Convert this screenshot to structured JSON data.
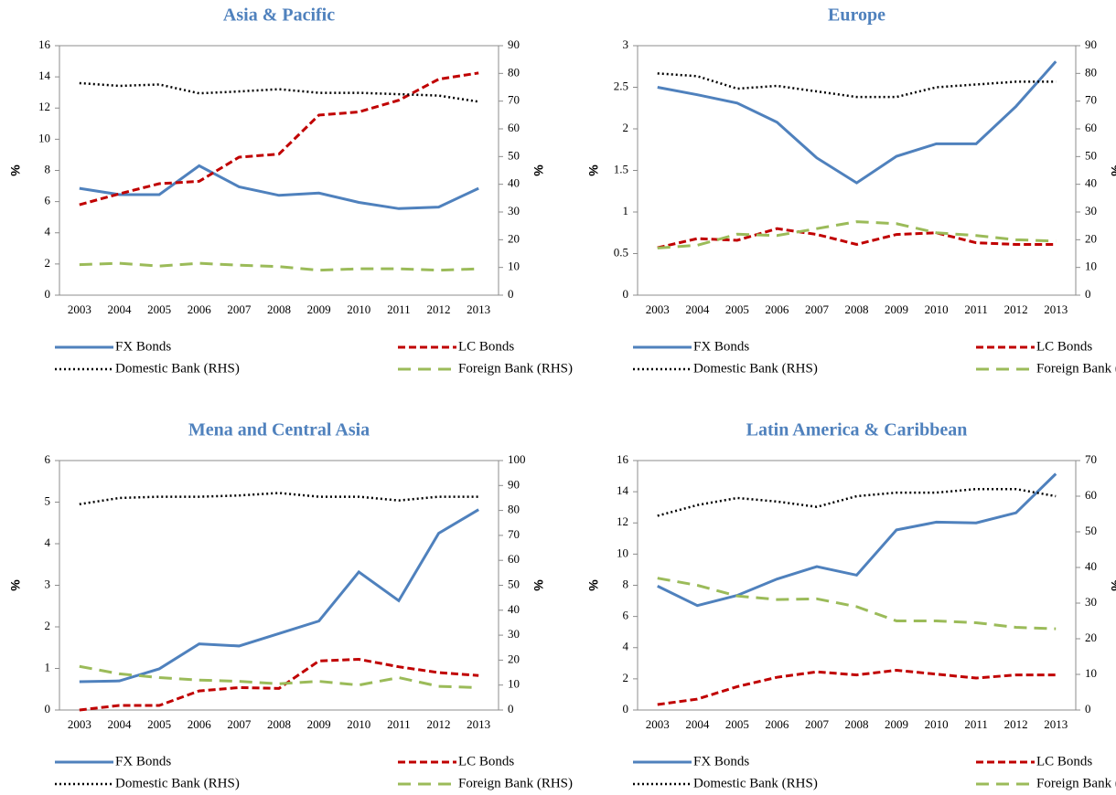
{
  "chart_data": [
    {
      "type": "line",
      "title": "Asia & Pacific",
      "ylabel": "%",
      "y2label": "%",
      "categories": [
        "2003",
        "2004",
        "2005",
        "2006",
        "2007",
        "2008",
        "2009",
        "2010",
        "2011",
        "2012",
        "2013"
      ],
      "ylim": [
        0,
        16
      ],
      "yticks": [
        0,
        2,
        4,
        6,
        8,
        10,
        12,
        14,
        16
      ],
      "y2lim": [
        0,
        90
      ],
      "y2ticks": [
        0,
        10,
        20,
        30,
        40,
        50,
        60,
        70,
        80,
        90
      ],
      "legend": "bottom",
      "series": [
        {
          "name": "FX Bonds",
          "color": "#4f81bd",
          "style": "solid",
          "values": [
            6.85,
            6.45,
            6.45,
            8.3,
            6.95,
            6.4,
            6.55,
            5.95,
            5.55,
            5.65,
            6.85
          ]
        },
        {
          "name": "LC Bonds",
          "color": "#c00000",
          "style": "dashed",
          "values": [
            5.8,
            6.5,
            7.15,
            7.3,
            8.85,
            9.05,
            11.55,
            11.75,
            12.5,
            13.85,
            14.25
          ]
        },
        {
          "name": "Domestic Bank (RHS)",
          "color": "#000000",
          "style": "dotted",
          "axis": "y2",
          "values": [
            76.5,
            75.5,
            76,
            72.8,
            73.5,
            74.3,
            73,
            73,
            72.5,
            72,
            69.8
          ]
        },
        {
          "name": "Foreign Bank (RHS)",
          "color": "#9bbb59",
          "style": "longdash",
          "axis": "y2",
          "values": [
            11,
            11.5,
            10.5,
            11.5,
            10.8,
            10.3,
            9,
            9.5,
            9.5,
            9,
            9.5
          ]
        }
      ]
    },
    {
      "type": "line",
      "title": "Europe",
      "ylabel": "%",
      "y2label": "%",
      "categories": [
        "2003",
        "2004",
        "2005",
        "2006",
        "2007",
        "2008",
        "2009",
        "2010",
        "2011",
        "2012",
        "2013"
      ],
      "ylim": [
        0,
        3
      ],
      "yticks": [
        0,
        0.5,
        1,
        1.5,
        2,
        2.5,
        3
      ],
      "y2lim": [
        0,
        90
      ],
      "y2ticks": [
        0,
        10,
        20,
        30,
        40,
        50,
        60,
        70,
        80,
        90
      ],
      "legend": "bottom",
      "series": [
        {
          "name": "FX Bonds",
          "color": "#4f81bd",
          "style": "solid",
          "values": [
            2.5,
            2.41,
            2.31,
            2.08,
            1.65,
            1.35,
            1.67,
            1.82,
            1.82,
            2.27,
            2.81
          ]
        },
        {
          "name": "LC Bonds",
          "color": "#c00000",
          "style": "dashed",
          "values": [
            0.57,
            0.68,
            0.66,
            0.8,
            0.73,
            0.61,
            0.73,
            0.75,
            0.63,
            0.61,
            0.61
          ]
        },
        {
          "name": "Domestic Bank (RHS)",
          "color": "#000000",
          "style": "dotted",
          "axis": "y2",
          "values": [
            80,
            79,
            74.5,
            75.5,
            73.5,
            71.5,
            71.5,
            75,
            76,
            77,
            77
          ]
        },
        {
          "name": "Foreign Bank (RHS)",
          "color": "#9bbb59",
          "style": "longdash",
          "axis": "y2",
          "values": [
            17,
            18,
            22,
            21.5,
            24,
            26.5,
            25.8,
            22.5,
            21.5,
            20,
            19.5
          ]
        }
      ]
    },
    {
      "type": "line",
      "title": "Mena and Central Asia",
      "ylabel": "%",
      "y2label": "%",
      "categories": [
        "2003",
        "2004",
        "2005",
        "2006",
        "2007",
        "2008",
        "2009",
        "2010",
        "2011",
        "2012",
        "2013"
      ],
      "ylim": [
        0,
        6
      ],
      "yticks": [
        0,
        1,
        2,
        3,
        4,
        5,
        6
      ],
      "y2lim": [
        0,
        100
      ],
      "y2ticks": [
        0,
        10,
        20,
        30,
        40,
        50,
        60,
        70,
        80,
        90,
        100
      ],
      "legend": "bottom",
      "series": [
        {
          "name": "FX Bonds",
          "color": "#4f81bd",
          "style": "solid",
          "values": [
            0.68,
            0.7,
            0.99,
            1.59,
            1.54,
            1.84,
            2.14,
            3.32,
            2.63,
            4.25,
            4.82
          ]
        },
        {
          "name": "LC Bonds",
          "color": "#c00000",
          "style": "dashed",
          "values": [
            0,
            0.11,
            0.11,
            0.46,
            0.54,
            0.52,
            1.18,
            1.22,
            1.04,
            0.9,
            0.83
          ]
        },
        {
          "name": "Domestic Bank (RHS)",
          "color": "#000000",
          "style": "dotted",
          "axis": "y2",
          "values": [
            82.5,
            85,
            85.5,
            85.5,
            86,
            87,
            85.5,
            85.5,
            84,
            85.5,
            85.5
          ]
        },
        {
          "name": "Foreign Bank (RHS)",
          "color": "#9bbb59",
          "style": "longdash",
          "axis": "y2",
          "values": [
            17.5,
            14.5,
            13,
            12,
            11.5,
            10.5,
            11.5,
            10,
            13,
            9.5,
            9
          ]
        }
      ]
    },
    {
      "type": "line",
      "title": "Latin America & Caribbean",
      "ylabel": "%",
      "y2label": "%",
      "categories": [
        "2003",
        "2004",
        "2005",
        "2006",
        "2007",
        "2008",
        "2009",
        "2010",
        "2011",
        "2012",
        "2013"
      ],
      "ylim": [
        0,
        16
      ],
      "yticks": [
        0,
        2,
        4,
        6,
        8,
        10,
        12,
        14,
        16
      ],
      "y2lim": [
        0,
        70
      ],
      "y2ticks": [
        0,
        10,
        20,
        30,
        40,
        50,
        60,
        70
      ],
      "legend": "bottom",
      "series": [
        {
          "name": "FX Bonds",
          "color": "#4f81bd",
          "style": "solid",
          "values": [
            7.95,
            6.7,
            7.35,
            8.4,
            9.2,
            8.65,
            11.55,
            12.05,
            12,
            12.65,
            15.15
          ]
        },
        {
          "name": "LC Bonds",
          "color": "#c00000",
          "style": "dashed",
          "values": [
            0.35,
            0.7,
            1.5,
            2.1,
            2.45,
            2.25,
            2.55,
            2.3,
            2.05,
            2.25,
            2.25
          ]
        },
        {
          "name": "Domestic Bank (RHS)",
          "color": "#000000",
          "style": "dotted",
          "axis": "y2",
          "values": [
            54.5,
            57.5,
            59.5,
            58.5,
            57,
            60,
            61,
            61,
            62,
            62,
            60
          ]
        },
        {
          "name": "Foreign Bank (RHS)",
          "color": "#9bbb59",
          "style": "longdash",
          "axis": "y2",
          "values": [
            37,
            35,
            32,
            31,
            31.2,
            29,
            25,
            25,
            24.5,
            23.2,
            22.8
          ]
        }
      ]
    }
  ]
}
